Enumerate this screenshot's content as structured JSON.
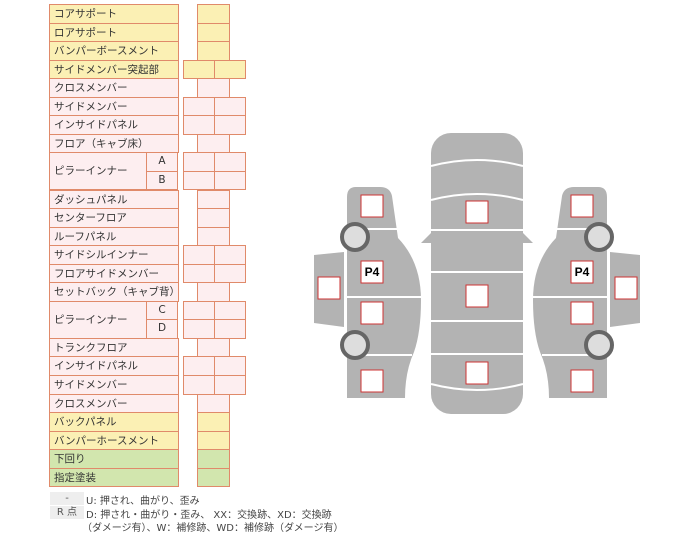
{
  "rows": [
    {
      "label": "コアサポート",
      "color": "yellow",
      "cells": "single"
    },
    {
      "label": "ロアサポート",
      "color": "yellow",
      "cells": "single"
    },
    {
      "label": "バンパーボースメント",
      "color": "yellow",
      "cells": "single"
    },
    {
      "label": "サイドメンバー突起部",
      "color": "yellow",
      "cells": "double"
    },
    {
      "label": "クロスメンバー",
      "color": "pink",
      "cells": "single"
    },
    {
      "label": "サイドメンバー",
      "color": "pink",
      "cells": "double"
    },
    {
      "label": "インサイドパネル",
      "color": "pink",
      "cells": "double"
    },
    {
      "label": "フロア（キャブ床）",
      "color": "pink",
      "cells": "single"
    },
    {
      "label": "ピラーインナー",
      "color": "pink",
      "cells": "double",
      "subs": [
        "A",
        "B"
      ]
    },
    {
      "label": "ダッシュパネル",
      "color": "pink",
      "cells": "single"
    },
    {
      "label": "センターフロア",
      "color": "pink",
      "cells": "single"
    },
    {
      "label": "ルーフパネル",
      "color": "pink",
      "cells": "single"
    },
    {
      "label": "サイドシルインナー",
      "color": "pink",
      "cells": "double"
    },
    {
      "label": "フロアサイドメンバー",
      "color": "pink",
      "cells": "double"
    },
    {
      "label": "セットバック（キャブ背）",
      "color": "pink",
      "cells": "single"
    },
    {
      "label": "ピラーインナー",
      "color": "pink",
      "cells": "double",
      "subs": [
        "C",
        "D"
      ]
    },
    {
      "label": "トランクフロア",
      "color": "pink",
      "cells": "single"
    },
    {
      "label": "インサイドパネル",
      "color": "pink",
      "cells": "double"
    },
    {
      "label": "サイドメンバー",
      "color": "pink",
      "cells": "double"
    },
    {
      "label": "クロスメンバー",
      "color": "pink",
      "cells": "single"
    },
    {
      "label": "バックパネル",
      "color": "yellow",
      "cells": "single"
    },
    {
      "label": "バンパーホースメント",
      "color": "yellow",
      "cells": "single"
    },
    {
      "label": "下回り",
      "color": "green",
      "cells": "single"
    },
    {
      "label": "指定塗装",
      "color": "green",
      "cells": "single"
    }
  ],
  "legend": [
    {
      "key": "-",
      "text": "U: 押され、曲がり、歪み"
    },
    {
      "key": "R 点",
      "text": "D: 押され・曲がり・歪み、 XX：交換跡、XD：交換跡",
      "text2": "（ダメージ有）、W：補修跡、WD：補修跡（ダメージ有）"
    }
  ],
  "diagram": {
    "left_marker": "P4",
    "right_marker": "P4",
    "body_color": "#b3b3b3",
    "box_border": "#cc3333"
  },
  "colors": {
    "yellow": "#fbf0b4",
    "pink": "#fdeef0",
    "green": "#d2e6ae",
    "border": "#e08a6a"
  }
}
